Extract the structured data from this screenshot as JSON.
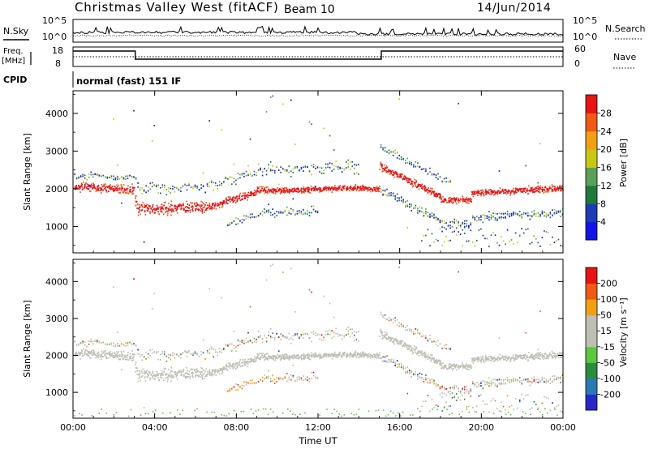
{
  "header": {
    "station": "Christmas Valley West (fitACF)",
    "beam": "Beam 10",
    "date": "14/Jun/2014"
  },
  "panels": {
    "nsky_label": "N.Sky",
    "nsearch_label": "N.Search",
    "freq_label_1": "Freq.",
    "freq_label_2": "[MHz]",
    "nave_label": "Nave",
    "cpid_label": "CPID",
    "cpid_text": "normal (fast) 151 IF",
    "noise_ticks_left": [
      "10^5",
      "10^0"
    ],
    "noise_ticks_right": [
      "10^5",
      "10^0"
    ],
    "freq_ticks": [
      "18",
      "8"
    ],
    "nave_ticks": [
      "60",
      "0"
    ]
  },
  "chart_data": [
    {
      "type": "heatmap",
      "title": "Power",
      "xlabel": "",
      "ylabel": "Slant Range [km]",
      "x_ticks": [
        "00:00",
        "04:00",
        "08:00",
        "12:00",
        "16:00",
        "20:00",
        "00:00"
      ],
      "y_ticks": [
        "1000",
        "2000",
        "3000",
        "4000"
      ],
      "ylim": [
        300,
        4600
      ],
      "colorbar": {
        "label": "Power [dB]",
        "ticks": [
          "4",
          "8",
          "12",
          "16",
          "20",
          "24",
          "28"
        ],
        "colors": [
          "#1414e6",
          "#1e3cb4",
          "#1e7a3c",
          "#5aa05a",
          "#c8c814",
          "#f0a014",
          "#f05a14",
          "#e61414"
        ]
      }
    },
    {
      "type": "heatmap",
      "title": "Velocity",
      "xlabel": "Time UT",
      "ylabel": "Slant Range [km]",
      "x_ticks": [
        "00:00",
        "04:00",
        "08:00",
        "12:00",
        "16:00",
        "20:00",
        "00:00"
      ],
      "y_ticks": [
        "1000",
        "2000",
        "3000",
        "4000"
      ],
      "ylim": [
        300,
        4600
      ],
      "colorbar": {
        "label": "Velocity [m s⁻¹]",
        "ticks": [
          "200",
          "100",
          "50",
          "15",
          "-15",
          "-50",
          "-100",
          "-200"
        ],
        "colors": [
          "#2828c8",
          "#287ab4",
          "#2a8c3c",
          "#5ac83c",
          "#bebeb4",
          "#bebeb4",
          "#f0a014",
          "#f05a14",
          "#e61414"
        ]
      }
    }
  ]
}
